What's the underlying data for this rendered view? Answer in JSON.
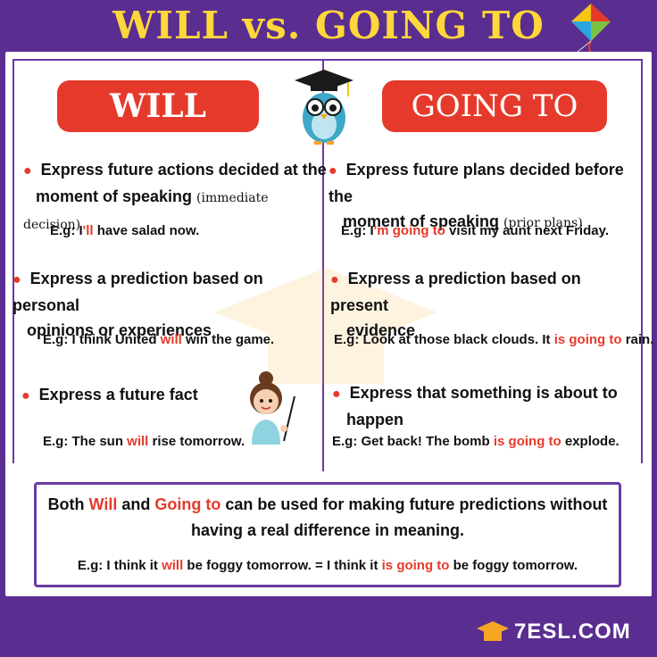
{
  "title": "WILL vs. GOING TO",
  "will_label": "WILL",
  "going_label": "GOING TO",
  "left": {
    "rule1": {
      "a": "Express future actions decided at the",
      "b": "moment of speaking",
      "paren": "(immediate decision)"
    },
    "ex1": {
      "a": "E.g: I",
      "b": "'ll",
      "c": " have salad now."
    },
    "rule2": {
      "a": "Express a prediction based on personal",
      "b": "opinions or experiences"
    },
    "ex2": {
      "a": "E.g: I think United ",
      "b": "will",
      "c": " win the game."
    },
    "rule3": {
      "a": "Express a future fact"
    },
    "ex3": {
      "a": "E.g: The sun ",
      "b": "will",
      "c": " rise tomorrow."
    }
  },
  "right": {
    "rule1": {
      "a": "Express future plans decided before the",
      "b": "moment of speaking",
      "paren": "(prior plans)"
    },
    "ex1": {
      "a": "E.g: I",
      "b": "'m going to",
      "c": " visit my aunt next Friday."
    },
    "rule2": {
      "a": "Express a prediction based on present",
      "b": "evidence"
    },
    "ex2": {
      "a": "E.g: Look at those black clouds. It ",
      "b": "is going to",
      "c": " rain."
    },
    "rule3": {
      "a": "Express that something is about to",
      "b": "happen"
    },
    "ex3": {
      "a": "E.g: Get back! The bomb ",
      "b": "is going to",
      "c": " explode."
    }
  },
  "summary": {
    "t1": "Both ",
    "will": "Will",
    "t2": " and ",
    "going": "Going to",
    "t3": " can be used for making future predictions without",
    "t4": "having a real difference in meaning.",
    "ex_a": "E.g: I think it ",
    "ex_b": "will",
    "ex_c": " be foggy tomorrow. = I think it ",
    "ex_d": "is going to",
    "ex_e": " be foggy tomorrow."
  },
  "logo": "7ESL.COM",
  "colors": {
    "accent_red": "#e53a2b",
    "purple": "#5a2d91",
    "title_yellow": "#ffd73a"
  },
  "icons": [
    "kite-icon",
    "owl-graduate-icon",
    "teacher-girl-icon",
    "graduation-cap-logo-icon"
  ]
}
